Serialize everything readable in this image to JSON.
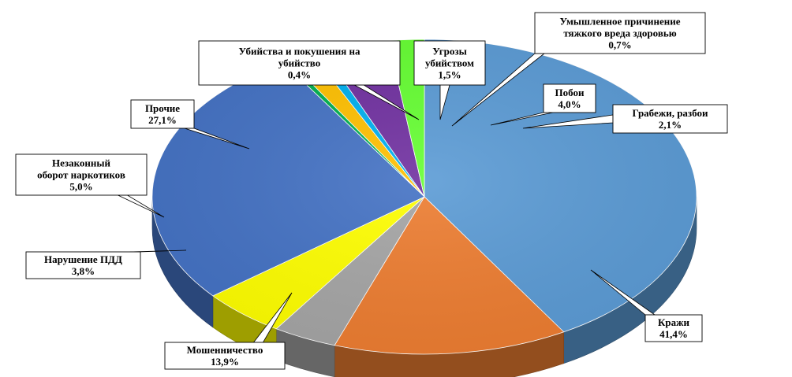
{
  "chart_data": {
    "type": "pie",
    "title": "",
    "slices": [
      {
        "name": "Кражи",
        "value": 41.4,
        "value_text": "41,4%",
        "color": "#5B9BD5"
      },
      {
        "name": "Мошенничество",
        "value": 13.9,
        "value_text": "13,9%",
        "color": "#ED7D31"
      },
      {
        "name": "Нарушение ПДД",
        "value": 3.8,
        "value_text": "3,8%",
        "color": "#A5A5A5"
      },
      {
        "name": "Незаконный оборот наркотиков",
        "value": 5.0,
        "value_text": "5,0%",
        "color": "#FFFF00"
      },
      {
        "name": "Прочие",
        "value": 27.1,
        "value_text": "27,1%",
        "color": "#4472C4"
      },
      {
        "name": "Убийства и покушения на убийство",
        "value": 0.4,
        "value_text": "0,4%",
        "color": "#00B050"
      },
      {
        "name": "Угрозы убийством",
        "value": 1.5,
        "value_text": "1,5%",
        "color": "#FFC000"
      },
      {
        "name": "Умышленное причинение тяжкого вреда здоровью",
        "value": 0.7,
        "value_text": "0,7%",
        "color": "#00B0F0"
      },
      {
        "name": "Побои",
        "value": 4.0,
        "value_text": "4,0%",
        "color": "#7030A0"
      },
      {
        "name": "Грабежи, разбои",
        "value": 2.1,
        "value_text": "2,1%",
        "color": "#66FF33"
      }
    ]
  }
}
